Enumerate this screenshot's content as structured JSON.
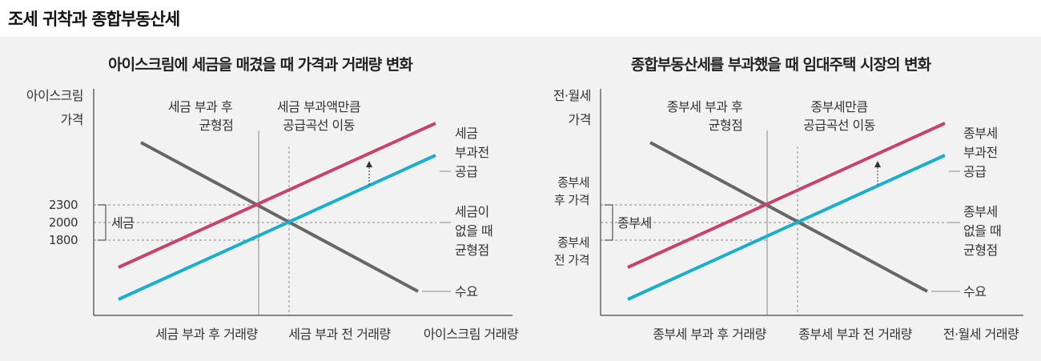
{
  "main_title": "조세 귀착과 종합부동산세",
  "colors": {
    "demand": "#666666",
    "supply_before": "#1aaecb",
    "supply_after": "#c8436a",
    "axis": "#444444",
    "guide": "#888888"
  },
  "left": {
    "title": "아이스크림에 세금을 매겼을 때 가격과 거래량 변화",
    "y_axis_label": [
      "아이스크림",
      "가격"
    ],
    "x_axis_label": "아이스크림 거래량",
    "ticks": {
      "p_after": "2300",
      "p_before": "2000",
      "p_seller": "1800"
    },
    "tax_label": "세금",
    "eq_after_label": [
      "세금 부과 후",
      "균형점"
    ],
    "shift_label": [
      "세금 부과액만큼",
      "공급곡선 이동"
    ],
    "supply_after_label": [
      "세금",
      "부과전"
    ],
    "supply_before_label": "공급",
    "eq_before_label": [
      "세금이",
      "없을 때",
      "균형점"
    ],
    "demand_label": "수요",
    "q_after_label": "세금 부과 후 거래량",
    "q_before_label": "세금 부과 전 거래량"
  },
  "right": {
    "title": "종합부동산세를 부과했을 때 임대주택 시장의 변화",
    "y_axis_label": [
      "전·월세",
      "가격"
    ],
    "x_axis_label": "전·월세 거래량",
    "ticks": {
      "p_after": [
        "종부세",
        "후 가격"
      ],
      "p_seller": [
        "종부세",
        "전 가격"
      ]
    },
    "tax_label": "종부세",
    "eq_after_label": [
      "종부세 부과 후",
      "균형점"
    ],
    "shift_label": [
      "종부세만큼",
      "공급곡선 이동"
    ],
    "supply_after_label": [
      "종부세",
      "부과전"
    ],
    "supply_before_label": "공급",
    "eq_before_label": [
      "종부세",
      "없을 때",
      "균형점"
    ],
    "demand_label": "수요",
    "q_after_label": "종부세 부과 후 거래량",
    "q_before_label": "종부세 부과 전 거래량"
  }
}
